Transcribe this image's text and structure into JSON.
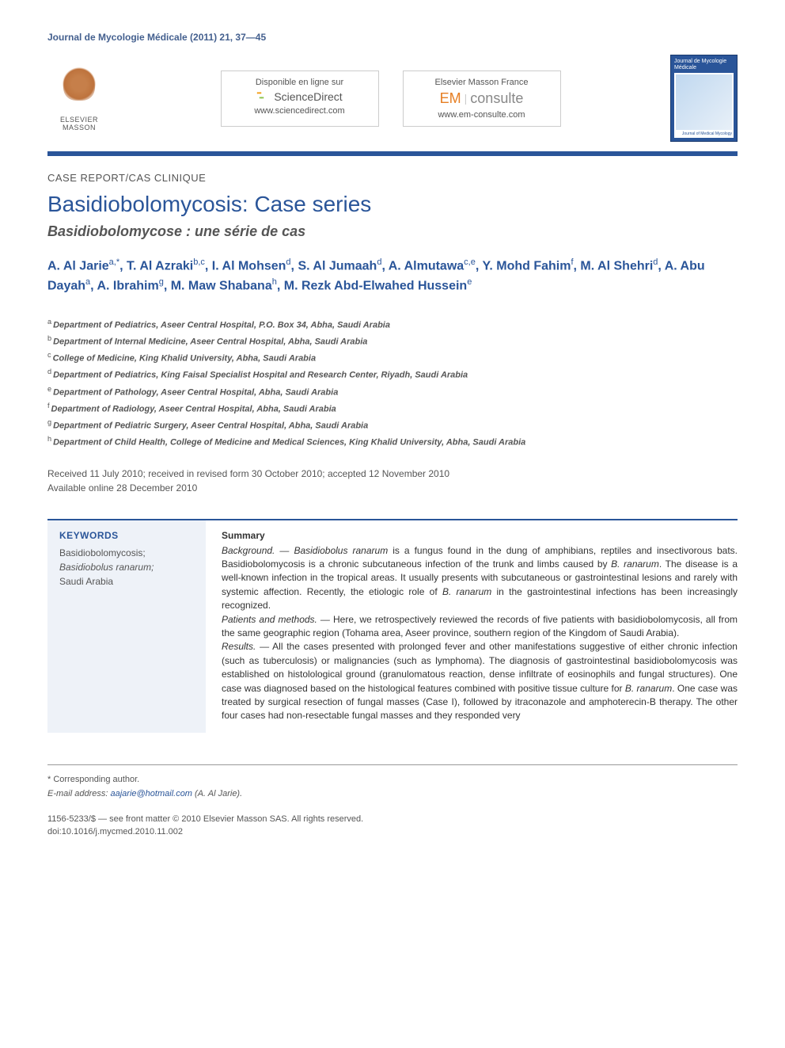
{
  "journal_header": "Journal de Mycologie Médicale (2011) 21, 37—45",
  "publisher": {
    "name": "ELSEVIER MASSON"
  },
  "online_box1": {
    "line1": "Disponible en ligne sur",
    "brand": "ScienceDirect",
    "url": "www.sciencedirect.com"
  },
  "online_box2": {
    "line1": "Elsevier Masson France",
    "brand_em": "EM",
    "brand_consulte": "consulte",
    "url": "www.em-consulte.com"
  },
  "journal_cover": {
    "title": "Journal de Mycologie Médicale",
    "sub": "Journal of Medical Mycology"
  },
  "article_type": "CASE REPORT/CAS CLININIQUE",
  "article_type_actual": "CASE REPORT/CAS CLINIQUE",
  "title_en": "Basidiobolomycosis: Case series",
  "title_fr": "Basidiobolomycose : une série de cas",
  "authors_html": "A. Al Jarie<sup>a,*</sup>, T. Al Azraki<sup>b,c</sup>, I. Al Mohsen<sup>d</sup>, S. Al Jumaah<sup>d</sup>, A. Almutawa<sup>c,e</sup>, Y. Mohd Fahim<sup>f</sup>, M. Al Shehri<sup>d</sup>, A. Abu Dayah<sup>a</sup>, A. Ibrahim<sup>g</sup>, M. Maw Shabana<sup>h</sup>, M. Rezk Abd-Elwahed Hussein<sup>e</sup>",
  "affiliations": {
    "a": "Department of Pediatrics, Aseer Central Hospital, P.O. Box 34, Abha, Saudi Arabia",
    "b": "Department of Internal Medicine, Aseer Central Hospital, Abha, Saudi Arabia",
    "c": "College of Medicine, King Khalid University, Abha, Saudi Arabia",
    "d": "Department of Pediatrics, King Faisal Specialist Hospital and Research Center, Riyadh, Saudi Arabia",
    "e": "Department of Pathology, Aseer Central Hospital, Abha, Saudi Arabia",
    "f": "Department of Radiology, Aseer Central Hospital, Abha, Saudi Arabia",
    "g": "Department of Pediatric Surgery, Aseer Central Hospital, Abha, Saudi Arabia",
    "h": "Department of Child Health, College of Medicine and Medical Sciences, King Khalid University, Abha, Saudi Arabia"
  },
  "dates": {
    "received": "Received 11 July 2010; received in revised form 30 October 2010; accepted 12 November 2010",
    "online": "Available online 28 December 2010"
  },
  "keywords": {
    "heading": "KEYWORDS",
    "items": "Basidiobolomycosis;\nBasidiobolus ranarum;\nSaudi Arabia"
  },
  "abstract": {
    "heading": "Summary",
    "background_label": "Background. —",
    "background": " Basidiobolus ranarum is a fungus found in the dung of amphibians, reptiles and insectivorous bats. Basidiobolomycosis is a chronic subcutaneous infection of the trunk and limbs caused by B. ranarum. The disease is a well-known infection in the tropical areas. It usually presents with subcutaneous or gastrointestinal lesions and rarely with systemic affection. Recently, the etiologic role of B. ranarum in the gastrointestinal infections has been increasingly recognized.",
    "patients_label": "Patients and methods. —",
    "patients": " Here, we retrospectively reviewed the records of five patients with basidiobolomycosis, all from the same geographic region (Tohama area, Aseer province, southern region of the Kingdom of Saudi Arabia).",
    "results_label": "Results. —",
    "results": " All the cases presented with prolonged fever and other manifestations suggestive of either chronic infection (such as tuberculosis) or malignancies (such as lymphoma). The diagnosis of gastrointestinal basidiobolomycosis was established on histolological ground (granulomatous reaction, dense infiltrate of eosinophils and fungal structures). One case was diagnosed based on the histological features combined with positive tissue culture for B. ranarum. One case was treated by surgical resection of fungal masses (Case I), followed by itraconazole and amphoterecin-B therapy. The other four cases had non-resectable fungal masses and they responded very"
  },
  "footer": {
    "corresponding": "* Corresponding author.",
    "email_label": "E-mail address:",
    "email": "aajarie@hotmail.com",
    "email_author": "(A. Al Jarie).",
    "issn": "1156-5233/$ — see front matter © 2010 Elsevier Masson SAS. All rights reserved.",
    "doi": "doi:10.1016/j.mycmed.2010.11.002"
  },
  "colors": {
    "primary_blue": "#2a5599",
    "link_blue": "#435f8e",
    "text_gray": "#555555",
    "keywords_bg": "#eef2f8"
  },
  "fonts": {
    "body": "Arial, Helvetica, sans-serif",
    "title_size_pt": 28,
    "subtitle_size_pt": 18,
    "body_size_pt": 12,
    "small_size_pt": 11
  }
}
